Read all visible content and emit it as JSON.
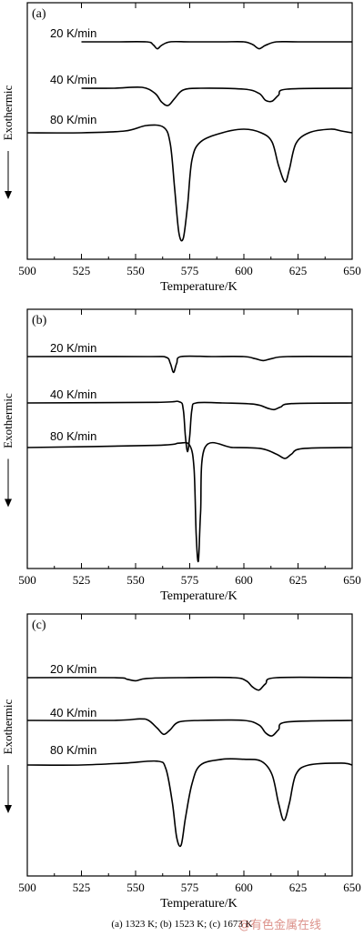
{
  "caption": "(a) 1323 K; (b) 1523 K; (c) 1673 K",
  "watermark": "@有色金属在线",
  "colors": {
    "line": "#000000",
    "watermark": "#c0392b"
  },
  "chart_data": [
    {
      "type": "line",
      "panel": "(a)",
      "xlabel": "Temperature/K",
      "ylabel": "Exothermic",
      "xlim": [
        500,
        650
      ],
      "xticks": [
        500,
        525,
        550,
        575,
        600,
        625,
        650
      ],
      "ylim": [
        -1,
        0.2
      ],
      "grid": false,
      "series": [
        {
          "name": "20 K/min",
          "offset": 0,
          "x": [
            525,
            540,
            555,
            558,
            560,
            562,
            566,
            575,
            590,
            600,
            604,
            607,
            610,
            615,
            625,
            650
          ],
          "values": [
            0,
            0,
            0,
            -0.015,
            -0.04,
            -0.02,
            0,
            0,
            0,
            0,
            -0.015,
            -0.04,
            -0.02,
            0,
            0,
            0
          ]
        },
        {
          "name": "40 K/min",
          "offset": -0.25,
          "x": [
            525,
            540,
            553,
            559,
            562,
            565,
            568,
            572,
            580,
            600,
            607,
            610,
            613,
            616,
            620,
            650
          ],
          "values": [
            0,
            0,
            0.005,
            -0.03,
            -0.08,
            -0.1,
            -0.06,
            -0.01,
            0,
            -0.005,
            -0.03,
            -0.07,
            -0.075,
            -0.04,
            -0.005,
            0
          ]
        },
        {
          "name": "80 K/min",
          "offset": -0.49,
          "x": [
            500,
            525,
            545,
            555,
            563,
            566,
            568,
            570,
            572,
            574,
            576,
            580,
            590,
            600,
            608,
            613,
            616,
            619,
            621,
            624,
            630,
            640,
            645,
            650
          ],
          "values": [
            0,
            0,
            0.01,
            0.04,
            0.03,
            -0.06,
            -0.3,
            -0.55,
            -0.58,
            -0.4,
            -0.15,
            -0.05,
            0.0,
            0.02,
            0.0,
            -0.05,
            -0.18,
            -0.27,
            -0.2,
            -0.06,
            0.0,
            0.02,
            0.01,
            0.0
          ]
        }
      ]
    },
    {
      "type": "line",
      "panel": "(b)",
      "xlabel": "Temperature/K",
      "ylabel": "Exothermic",
      "xlim": [
        500,
        650
      ],
      "xticks": [
        500,
        525,
        550,
        575,
        600,
        625,
        650
      ],
      "ylim": [
        -1,
        0.2
      ],
      "grid": false,
      "series": [
        {
          "name": "20 K/min",
          "offset": 0,
          "x": [
            500,
            555,
            564,
            566,
            567.5,
            569,
            571,
            585,
            600,
            605,
            609,
            613,
            620,
            650
          ],
          "values": [
            0,
            0,
            -0.005,
            -0.05,
            -0.12,
            -0.05,
            0,
            0,
            0,
            -0.015,
            -0.03,
            -0.015,
            0,
            0
          ]
        },
        {
          "name": "40 K/min",
          "offset": -0.22,
          "x": [
            500,
            560,
            570,
            572,
            573,
            574,
            575,
            576,
            578,
            590,
            605,
            611,
            614,
            617,
            622,
            650
          ],
          "values": [
            0,
            0.005,
            0.01,
            -0.05,
            -0.25,
            -0.37,
            -0.25,
            -0.05,
            0.0,
            0.0,
            -0.01,
            -0.04,
            -0.05,
            -0.03,
            -0.005,
            0
          ]
        },
        {
          "name": "80 K/min",
          "offset": -0.43,
          "x": [
            500,
            560,
            570,
            575,
            577,
            578,
            579,
            580,
            582,
            595,
            608,
            615,
            619,
            622,
            627,
            650
          ],
          "values": [
            0,
            0.01,
            0.02,
            0.01,
            -0.1,
            -0.4,
            -0.52,
            -0.3,
            0.0,
            0.0,
            -0.005,
            -0.03,
            -0.05,
            -0.03,
            -0.005,
            0
          ]
        }
      ]
    },
    {
      "type": "line",
      "panel": "(c)",
      "xlabel": "Temperature/K",
      "ylabel": "Exothermic",
      "xlim": [
        500,
        650
      ],
      "xticks": [
        500,
        525,
        550,
        575,
        600,
        625,
        650
      ],
      "ylim": [
        -1,
        0.2
      ],
      "grid": false,
      "series": [
        {
          "name": "20 K/min",
          "offset": 0,
          "x": [
            500,
            540,
            546,
            550,
            555,
            570,
            595,
            601,
            604,
            607,
            610,
            615,
            650
          ],
          "values": [
            0,
            0,
            -0.01,
            -0.02,
            -0.005,
            0,
            0,
            -0.02,
            -0.06,
            -0.08,
            -0.04,
            0,
            0
          ]
        },
        {
          "name": "40 K/min",
          "offset": -0.21,
          "x": [
            500,
            540,
            552,
            556,
            560,
            563,
            566,
            570,
            580,
            600,
            607,
            610,
            613,
            616,
            620,
            650
          ],
          "values": [
            0,
            0,
            0.01,
            0.0,
            -0.05,
            -0.09,
            -0.06,
            -0.01,
            0.0,
            0.0,
            -0.03,
            -0.08,
            -0.1,
            -0.06,
            -0.01,
            0
          ]
        },
        {
          "name": "80 K/min",
          "offset": -0.42,
          "x": [
            500,
            525,
            545,
            560,
            564,
            567,
            569,
            571,
            573,
            576,
            580,
            590,
            600,
            608,
            613,
            616,
            618.5,
            621,
            624,
            630,
            645,
            650
          ],
          "values": [
            0,
            0,
            0.01,
            0.02,
            -0.02,
            -0.2,
            -0.38,
            -0.42,
            -0.28,
            -0.1,
            0.0,
            0.03,
            0.03,
            0.02,
            -0.05,
            -0.2,
            -0.29,
            -0.2,
            -0.05,
            0.0,
            0.01,
            0.0
          ]
        }
      ]
    }
  ]
}
